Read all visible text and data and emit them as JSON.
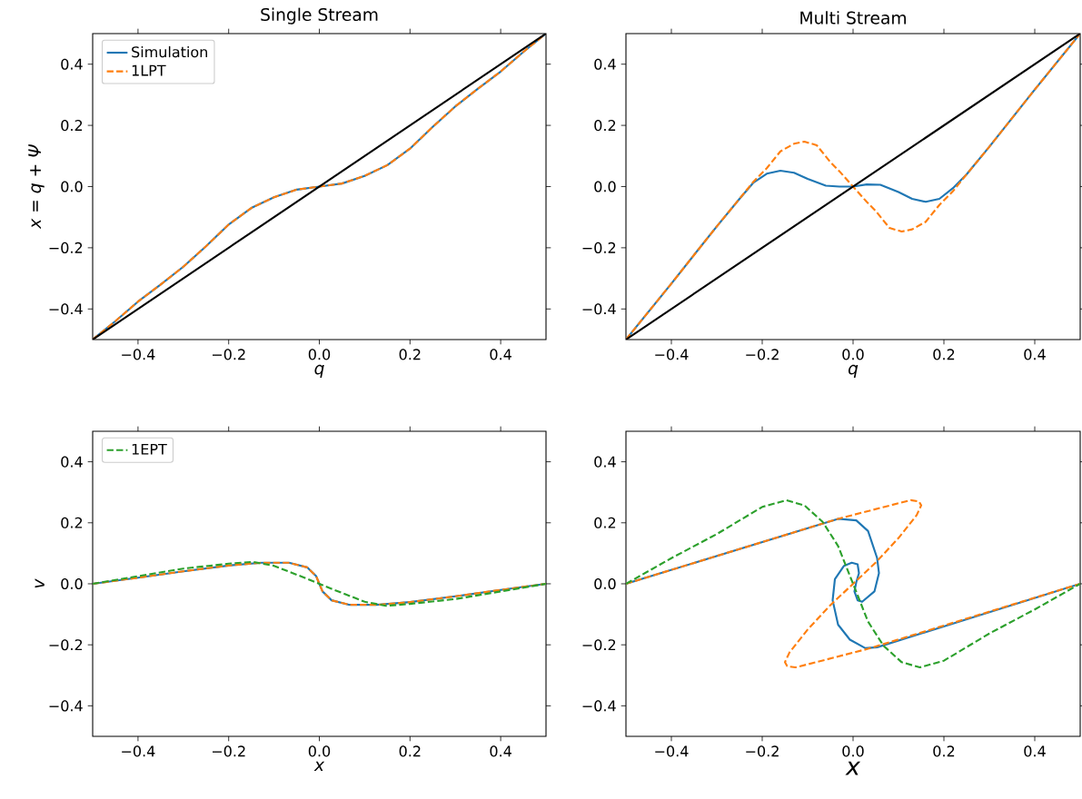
{
  "chart_data": [
    {
      "type": "line",
      "title": "Single Stream",
      "xlabel": "q",
      "ylabel": "x = q + Ψ",
      "xlim": [
        -0.5,
        0.5
      ],
      "ylim": [
        -0.5,
        0.5
      ],
      "xticks": [
        {
          "value": -0.4,
          "label": "−0.4"
        },
        {
          "value": -0.2,
          "label": "−0.2"
        },
        {
          "value": 0,
          "label": "0.0"
        },
        {
          "value": 0.2,
          "label": "0.2"
        },
        {
          "value": 0.4,
          "label": "0.4"
        }
      ],
      "yticks": [
        {
          "value": -0.4,
          "label": "−0.4"
        },
        {
          "value": -0.2,
          "label": "−0.2"
        },
        {
          "value": 0,
          "label": "0.0"
        },
        {
          "value": 0.2,
          "label": "0.2"
        },
        {
          "value": 0.4,
          "label": "0.4"
        }
      ],
      "legend": "top left",
      "series": [
        {
          "name": "Simulation",
          "color": "#1f77b4",
          "line_style": "solid",
          "x": [
            -0.5,
            -0.45,
            -0.4,
            -0.35,
            -0.3,
            -0.25,
            -0.2,
            -0.15,
            -0.1,
            -0.05,
            0,
            0.05,
            0.1,
            0.15,
            0.2,
            0.25,
            0.3,
            0.35,
            0.4,
            0.45,
            0.5
          ],
          "values": [
            -0.5,
            -0.44,
            -0.376,
            -0.32,
            -0.262,
            -0.195,
            -0.124,
            -0.07,
            -0.035,
            -0.01,
            0,
            0.01,
            0.035,
            0.07,
            0.124,
            0.195,
            0.262,
            0.32,
            0.376,
            0.44,
            0.5
          ]
        },
        {
          "name": "1LPT",
          "color": "#ff7f0e",
          "line_style": "dashed",
          "x": [
            -0.5,
            -0.45,
            -0.4,
            -0.35,
            -0.3,
            -0.25,
            -0.2,
            -0.15,
            -0.1,
            -0.05,
            0,
            0.05,
            0.1,
            0.15,
            0.2,
            0.25,
            0.3,
            0.35,
            0.4,
            0.45,
            0.5
          ],
          "values": [
            -0.5,
            -0.44,
            -0.376,
            -0.32,
            -0.262,
            -0.195,
            -0.124,
            -0.07,
            -0.035,
            -0.01,
            0,
            0.01,
            0.035,
            0.07,
            0.124,
            0.195,
            0.262,
            0.32,
            0.376,
            0.44,
            0.5
          ]
        },
        {
          "color": "#000000",
          "line_style": "solid",
          "x": [
            -0.5,
            0.5
          ],
          "values": [
            -0.5,
            0.5
          ]
        }
      ]
    },
    {
      "type": "line",
      "title": "Multi Stream",
      "xlabel": "q",
      "xlim": [
        -0.5,
        0.5
      ],
      "ylim": [
        -0.5,
        0.5
      ],
      "xticks": [
        {
          "value": -0.4,
          "label": "−0.4"
        },
        {
          "value": -0.2,
          "label": "−0.2"
        },
        {
          "value": 0,
          "label": "0.0"
        },
        {
          "value": 0.2,
          "label": "0.2"
        },
        {
          "value": 0.4,
          "label": "0.4"
        }
      ],
      "yticks": [
        {
          "value": -0.4,
          "label": "−0.4"
        },
        {
          "value": -0.2,
          "label": "−0.2"
        },
        {
          "value": 0,
          "label": "0.0"
        },
        {
          "value": 0.2,
          "label": "0.2"
        },
        {
          "value": 0.4,
          "label": "0.4"
        }
      ],
      "series": [
        {
          "color": "#1f77b4",
          "line_style": "solid",
          "x": [
            -0.5,
            -0.4,
            -0.3,
            -0.25,
            -0.22,
            -0.19,
            -0.16,
            -0.13,
            -0.1,
            -0.06,
            -0.03,
            0,
            0.03,
            0.06,
            0.1,
            0.13,
            0.16,
            0.19,
            0.22,
            0.25,
            0.3,
            0.4,
            0.5
          ],
          "values": [
            -0.5,
            -0.317,
            -0.13,
            -0.04,
            0.012,
            0.042,
            0.052,
            0.045,
            0.025,
            0.003,
            0,
            0,
            0.007,
            0.006,
            -0.018,
            -0.04,
            -0.05,
            -0.04,
            -0.005,
            0.04,
            0.13,
            0.317,
            0.5
          ]
        },
        {
          "color": "#ff7f0e",
          "line_style": "dashed",
          "x": [
            -0.5,
            -0.4,
            -0.3,
            -0.25,
            -0.22,
            -0.19,
            -0.16,
            -0.13,
            -0.107,
            -0.08,
            -0.05,
            -0.03,
            0,
            0.03,
            0.05,
            0.08,
            0.107,
            0.13,
            0.16,
            0.19,
            0.22,
            0.25,
            0.3,
            0.4,
            0.5
          ],
          "values": [
            -0.5,
            -0.317,
            -0.13,
            -0.04,
            0.015,
            0.06,
            0.115,
            0.14,
            0.147,
            0.135,
            0.08,
            0.05,
            0,
            -0.05,
            -0.08,
            -0.135,
            -0.147,
            -0.14,
            -0.115,
            -0.06,
            -0.015,
            0.04,
            0.13,
            0.317,
            0.5
          ]
        },
        {
          "color": "#000000",
          "line_style": "solid",
          "x": [
            -0.5,
            0.5
          ],
          "values": [
            -0.5,
            0.5
          ]
        }
      ]
    },
    {
      "type": "line",
      "xlabel": "x",
      "ylabel": "v",
      "xlim": [
        -0.5,
        0.5
      ],
      "ylim": [
        -0.5,
        0.5
      ],
      "xticks": [
        {
          "value": -0.4,
          "label": "−0.4"
        },
        {
          "value": -0.2,
          "label": "−0.2"
        },
        {
          "value": 0,
          "label": "0.0"
        },
        {
          "value": 0.2,
          "label": "0.2"
        },
        {
          "value": 0.4,
          "label": "0.4"
        }
      ],
      "yticks": [
        {
          "value": -0.4,
          "label": "−0.4"
        },
        {
          "value": -0.2,
          "label": "−0.2"
        },
        {
          "value": 0,
          "label": "0.0"
        },
        {
          "value": 0.2,
          "label": "0.2"
        },
        {
          "value": 0.4,
          "label": "0.4"
        }
      ],
      "legend": "top left",
      "series": [
        {
          "color": "#1f77b4",
          "line_style": "solid",
          "x": [
            -0.5,
            -0.4,
            -0.3,
            -0.2,
            -0.127,
            -0.067,
            -0.027,
            -0.007,
            0,
            0.007,
            0.027,
            0.067,
            0.127,
            0.2,
            0.3,
            0.4,
            0.5
          ],
          "values": [
            0,
            0.02,
            0.041,
            0.06,
            0.069,
            0.069,
            0.054,
            0.025,
            0,
            -0.025,
            -0.054,
            -0.069,
            -0.069,
            -0.06,
            -0.041,
            -0.02,
            0
          ]
        },
        {
          "color": "#ff7f0e",
          "line_style": "dashed",
          "x": [
            -0.5,
            -0.4,
            -0.3,
            -0.2,
            -0.127,
            -0.067,
            -0.027,
            -0.007,
            0,
            0.007,
            0.027,
            0.067,
            0.127,
            0.2,
            0.3,
            0.4,
            0.5
          ],
          "values": [
            0,
            0.02,
            0.041,
            0.06,
            0.069,
            0.069,
            0.054,
            0.025,
            0,
            -0.025,
            -0.054,
            -0.069,
            -0.069,
            -0.06,
            -0.041,
            -0.02,
            0
          ]
        },
        {
          "name": "1EPT",
          "color": "#2ca02c",
          "line_style": "dashed",
          "x": [
            -0.5,
            -0.4,
            -0.3,
            -0.2,
            -0.147,
            -0.1,
            -0.033,
            0,
            0.033,
            0.1,
            0.147,
            0.2,
            0.3,
            0.4,
            0.5
          ],
          "values": [
            0,
            0.025,
            0.05,
            0.066,
            0.072,
            0.059,
            0.02,
            0,
            -0.02,
            -0.059,
            -0.072,
            -0.066,
            -0.05,
            -0.025,
            0
          ]
        }
      ]
    },
    {
      "type": "line",
      "xlabel": "x",
      "xlim": [
        -0.5,
        0.5
      ],
      "ylim": [
        -0.5,
        0.5
      ],
      "xticks": [
        {
          "value": -0.4,
          "label": "−0.4"
        },
        {
          "value": -0.2,
          "label": "−0.2"
        },
        {
          "value": 0,
          "label": "0.0"
        },
        {
          "value": 0.2,
          "label": "0.2"
        },
        {
          "value": 0.4,
          "label": "0.4"
        }
      ],
      "yticks": [
        {
          "value": -0.4,
          "label": "−0.4"
        },
        {
          "value": -0.2,
          "label": "−0.2"
        },
        {
          "value": 0,
          "label": "0.0"
        },
        {
          "value": 0.2,
          "label": "0.2"
        },
        {
          "value": 0.4,
          "label": "0.4"
        }
      ],
      "series": [
        {
          "color": "#1f77b4",
          "line_style": "solid",
          "x": [
            -0.5,
            -0.033,
            0.007,
            0.033,
            0.053,
            0.057,
            0.047,
            0.02,
            0.01,
            0.003,
            0.007,
            0.013,
            0.01,
            -0.003,
            -0.02,
            -0.04,
            -0.045,
            -0.033,
            -0.007,
            0.027,
            0.053,
            0.5
          ],
          "values": [
            0,
            0.213,
            0.208,
            0.173,
            0.084,
            0.035,
            -0.025,
            -0.059,
            -0.054,
            -0.025,
            0.005,
            0.035,
            0.064,
            0.069,
            0.059,
            0.015,
            -0.054,
            -0.134,
            -0.183,
            -0.211,
            -0.208,
            0
          ]
        },
        {
          "color": "#ff7f0e",
          "line_style": "dashed",
          "x": [
            -0.5,
            -0.033,
            0.1,
            0.127,
            0.145,
            0.15,
            0.14,
            0.1,
            0.05,
            0,
            -0.05,
            -0.1,
            -0.14,
            -0.15,
            -0.145,
            -0.127,
            -0.1,
            0.033,
            0.5
          ],
          "values": [
            0,
            0.213,
            0.264,
            0.274,
            0.27,
            0.257,
            0.225,
            0.15,
            0.07,
            0,
            -0.07,
            -0.15,
            -0.225,
            -0.257,
            -0.27,
            -0.274,
            -0.264,
            -0.213,
            0
          ]
        },
        {
          "color": "#2ca02c",
          "line_style": "dashed",
          "x": [
            -0.5,
            -0.4,
            -0.3,
            -0.2,
            -0.147,
            -0.107,
            -0.067,
            -0.033,
            0,
            0.033,
            0.067,
            0.107,
            0.147,
            0.2,
            0.3,
            0.4,
            0.5
          ],
          "values": [
            0,
            0.084,
            0.163,
            0.252,
            0.274,
            0.257,
            0.203,
            0.124,
            0,
            -0.124,
            -0.203,
            -0.257,
            -0.274,
            -0.252,
            -0.163,
            -0.084,
            0
          ]
        }
      ]
    }
  ]
}
